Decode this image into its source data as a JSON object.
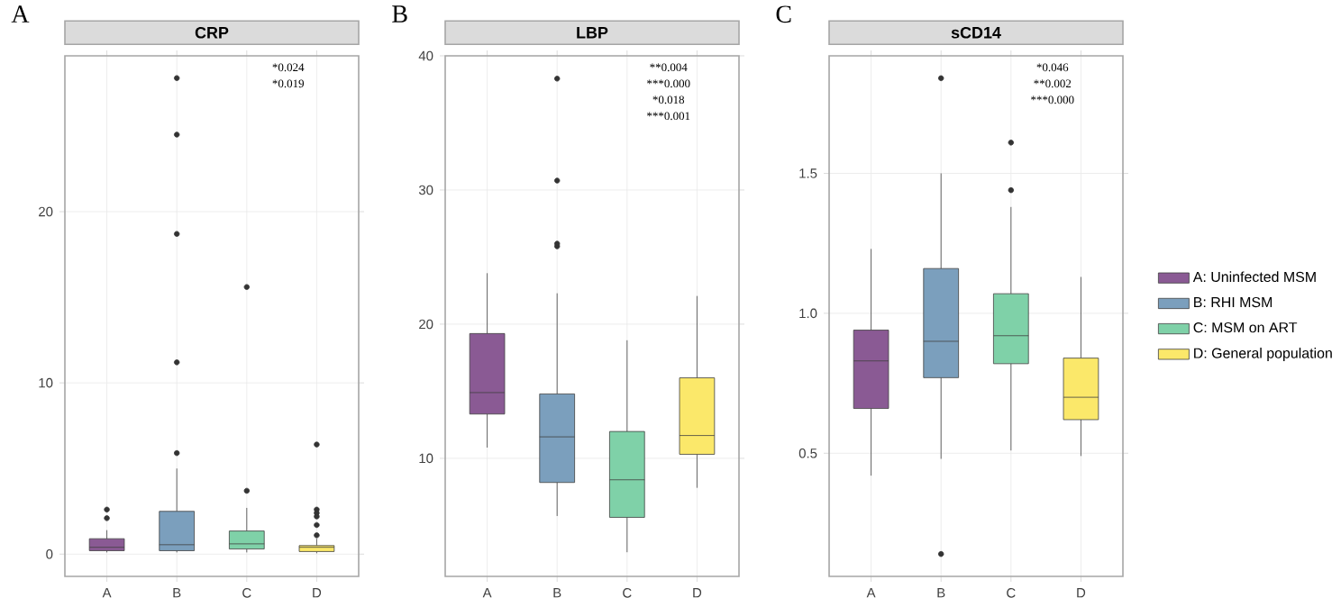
{
  "chart_data": [
    {
      "type": "box",
      "title": "CRP",
      "categories": [
        "A",
        "B",
        "C",
        "D"
      ],
      "ylim": [
        -1.3,
        29.1
      ],
      "yticks": [
        0,
        10,
        20
      ],
      "grid": true,
      "series": [
        {
          "color": "#8a5a94",
          "boxes": [
            {
              "low": 0.1,
              "q1": 0.2,
              "median": 0.4,
              "q3": 0.9,
              "high": 1.4,
              "outliers": [
                2.1,
                2.6
              ]
            },
            null,
            null,
            null
          ]
        },
        {
          "color": "#7b9fbd",
          "boxes": [
            null,
            {
              "low": 0.1,
              "q1": 0.2,
              "median": 0.55,
              "q3": 2.5,
              "high": 5.0,
              "outliers": [
                5.9,
                11.2,
                18.7,
                24.5,
                27.8
              ]
            },
            null,
            null
          ]
        },
        {
          "color": "#7fd1a8",
          "boxes": [
            null,
            null,
            {
              "low": 0.1,
              "q1": 0.3,
              "median": 0.6,
              "q3": 1.35,
              "high": 2.7,
              "outliers": [
                3.7,
                15.6
              ]
            },
            null
          ]
        },
        {
          "color": "#fbe86a",
          "boxes": [
            null,
            null,
            null,
            {
              "low": 0.05,
              "q1": 0.15,
              "median": 0.4,
              "q3": 0.5,
              "high": 0.9,
              "outliers": [
                1.1,
                1.7,
                2.2,
                2.4,
                2.6,
                6.4
              ]
            }
          ]
        }
      ],
      "annotations": [
        "A",
        "*0.024",
        "*0.019"
      ]
    },
    {
      "type": "box",
      "title": "LBP",
      "categories": [
        "A",
        "B",
        "C",
        "D"
      ],
      "ylim": [
        1.2,
        40.0
      ],
      "yticks": [
        10,
        20,
        30,
        40
      ],
      "grid": true,
      "series": [
        {
          "color": "#8a5a94",
          "boxes": [
            {
              "low": 10.8,
              "q1": 13.3,
              "median": 14.9,
              "q3": 19.3,
              "high": 23.8
            },
            null,
            null,
            null
          ]
        },
        {
          "color": "#7b9fbd",
          "boxes": [
            null,
            {
              "low": 5.7,
              "q1": 8.2,
              "median": 11.6,
              "q3": 14.8,
              "high": 22.3,
              "outliers": [
                25.8,
                26.0,
                30.7,
                38.3
              ]
            },
            null,
            null
          ]
        },
        {
          "color": "#7fd1a8",
          "boxes": [
            null,
            null,
            {
              "low": 3.0,
              "q1": 5.6,
              "median": 8.4,
              "q3": 12.0,
              "high": 18.8
            },
            null
          ]
        },
        {
          "color": "#fbe86a",
          "boxes": [
            null,
            null,
            null,
            {
              "low": 7.8,
              "q1": 10.3,
              "median": 11.7,
              "q3": 16.0,
              "high": 22.1
            }
          ]
        }
      ],
      "annotations": [
        "B",
        "**0.004",
        "***0.000",
        "*0.018",
        "***0.001"
      ]
    },
    {
      "type": "box",
      "title": "sCD14",
      "categories": [
        "A",
        "B",
        "C",
        "D"
      ],
      "ylim": [
        0.06,
        1.92
      ],
      "yticks": [
        0.5,
        {
          "value": 1.0,
          "label": "1.0"
        },
        1.5
      ],
      "grid": true,
      "legend": "right",
      "series": [
        {
          "name": "A: Uninfected MSM",
          "color": "#8a5a94",
          "boxes": [
            {
              "low": 0.42,
              "q1": 0.66,
              "median": 0.83,
              "q3": 0.94,
              "high": 1.23
            },
            null,
            null,
            null
          ]
        },
        {
          "name": "B: RHI MSM",
          "color": "#7b9fbd",
          "boxes": [
            null,
            {
              "low": 0.48,
              "q1": 0.77,
              "median": 0.9,
              "q3": 1.16,
              "high": 1.5,
              "outliers": [
                0.14,
                1.84
              ]
            },
            null,
            null
          ]
        },
        {
          "name": "C: MSM on ART",
          "color": "#7fd1a8",
          "boxes": [
            null,
            null,
            {
              "low": 0.51,
              "q1": 0.82,
              "median": 0.92,
              "q3": 1.07,
              "high": 1.38,
              "outliers": [
                1.44,
                1.61
              ]
            },
            null
          ]
        },
        {
          "name": "D: General population",
          "color": "#fbe86a",
          "boxes": [
            null,
            null,
            null,
            {
              "low": 0.49,
              "q1": 0.62,
              "median": 0.7,
              "q3": 0.84,
              "high": 1.13
            }
          ]
        }
      ],
      "annotations": [
        "C",
        "*0.046",
        "**0.002",
        "***0.000"
      ]
    }
  ]
}
